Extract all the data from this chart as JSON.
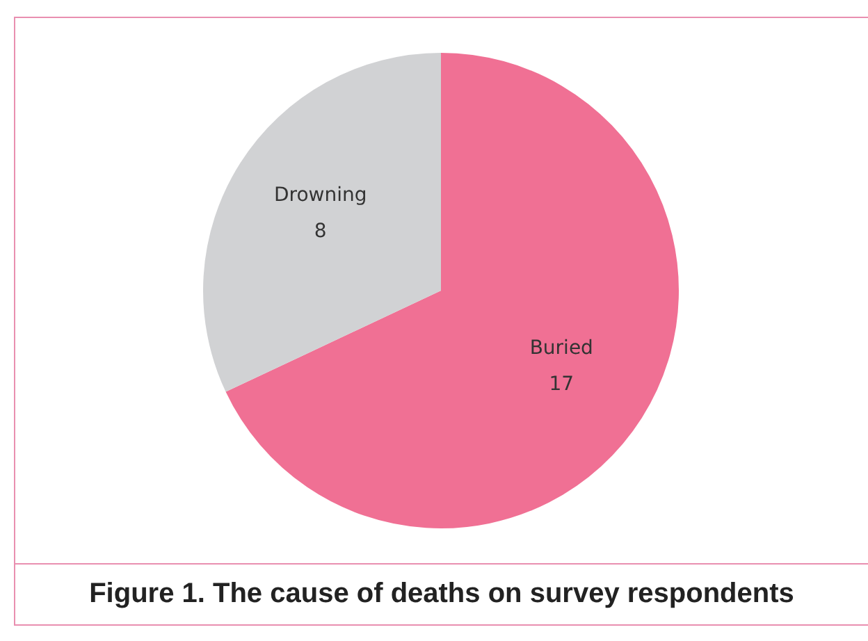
{
  "chart_data": {
    "type": "pie",
    "categories": [
      "Buried",
      "Drowning"
    ],
    "values": [
      17,
      8
    ],
    "colors": [
      "#f07094",
      "#d1d2d4"
    ],
    "data_labels": true,
    "legend": false,
    "annotations": [
      "Figure 1. The cause of deaths on survey respondents"
    ]
  }
}
